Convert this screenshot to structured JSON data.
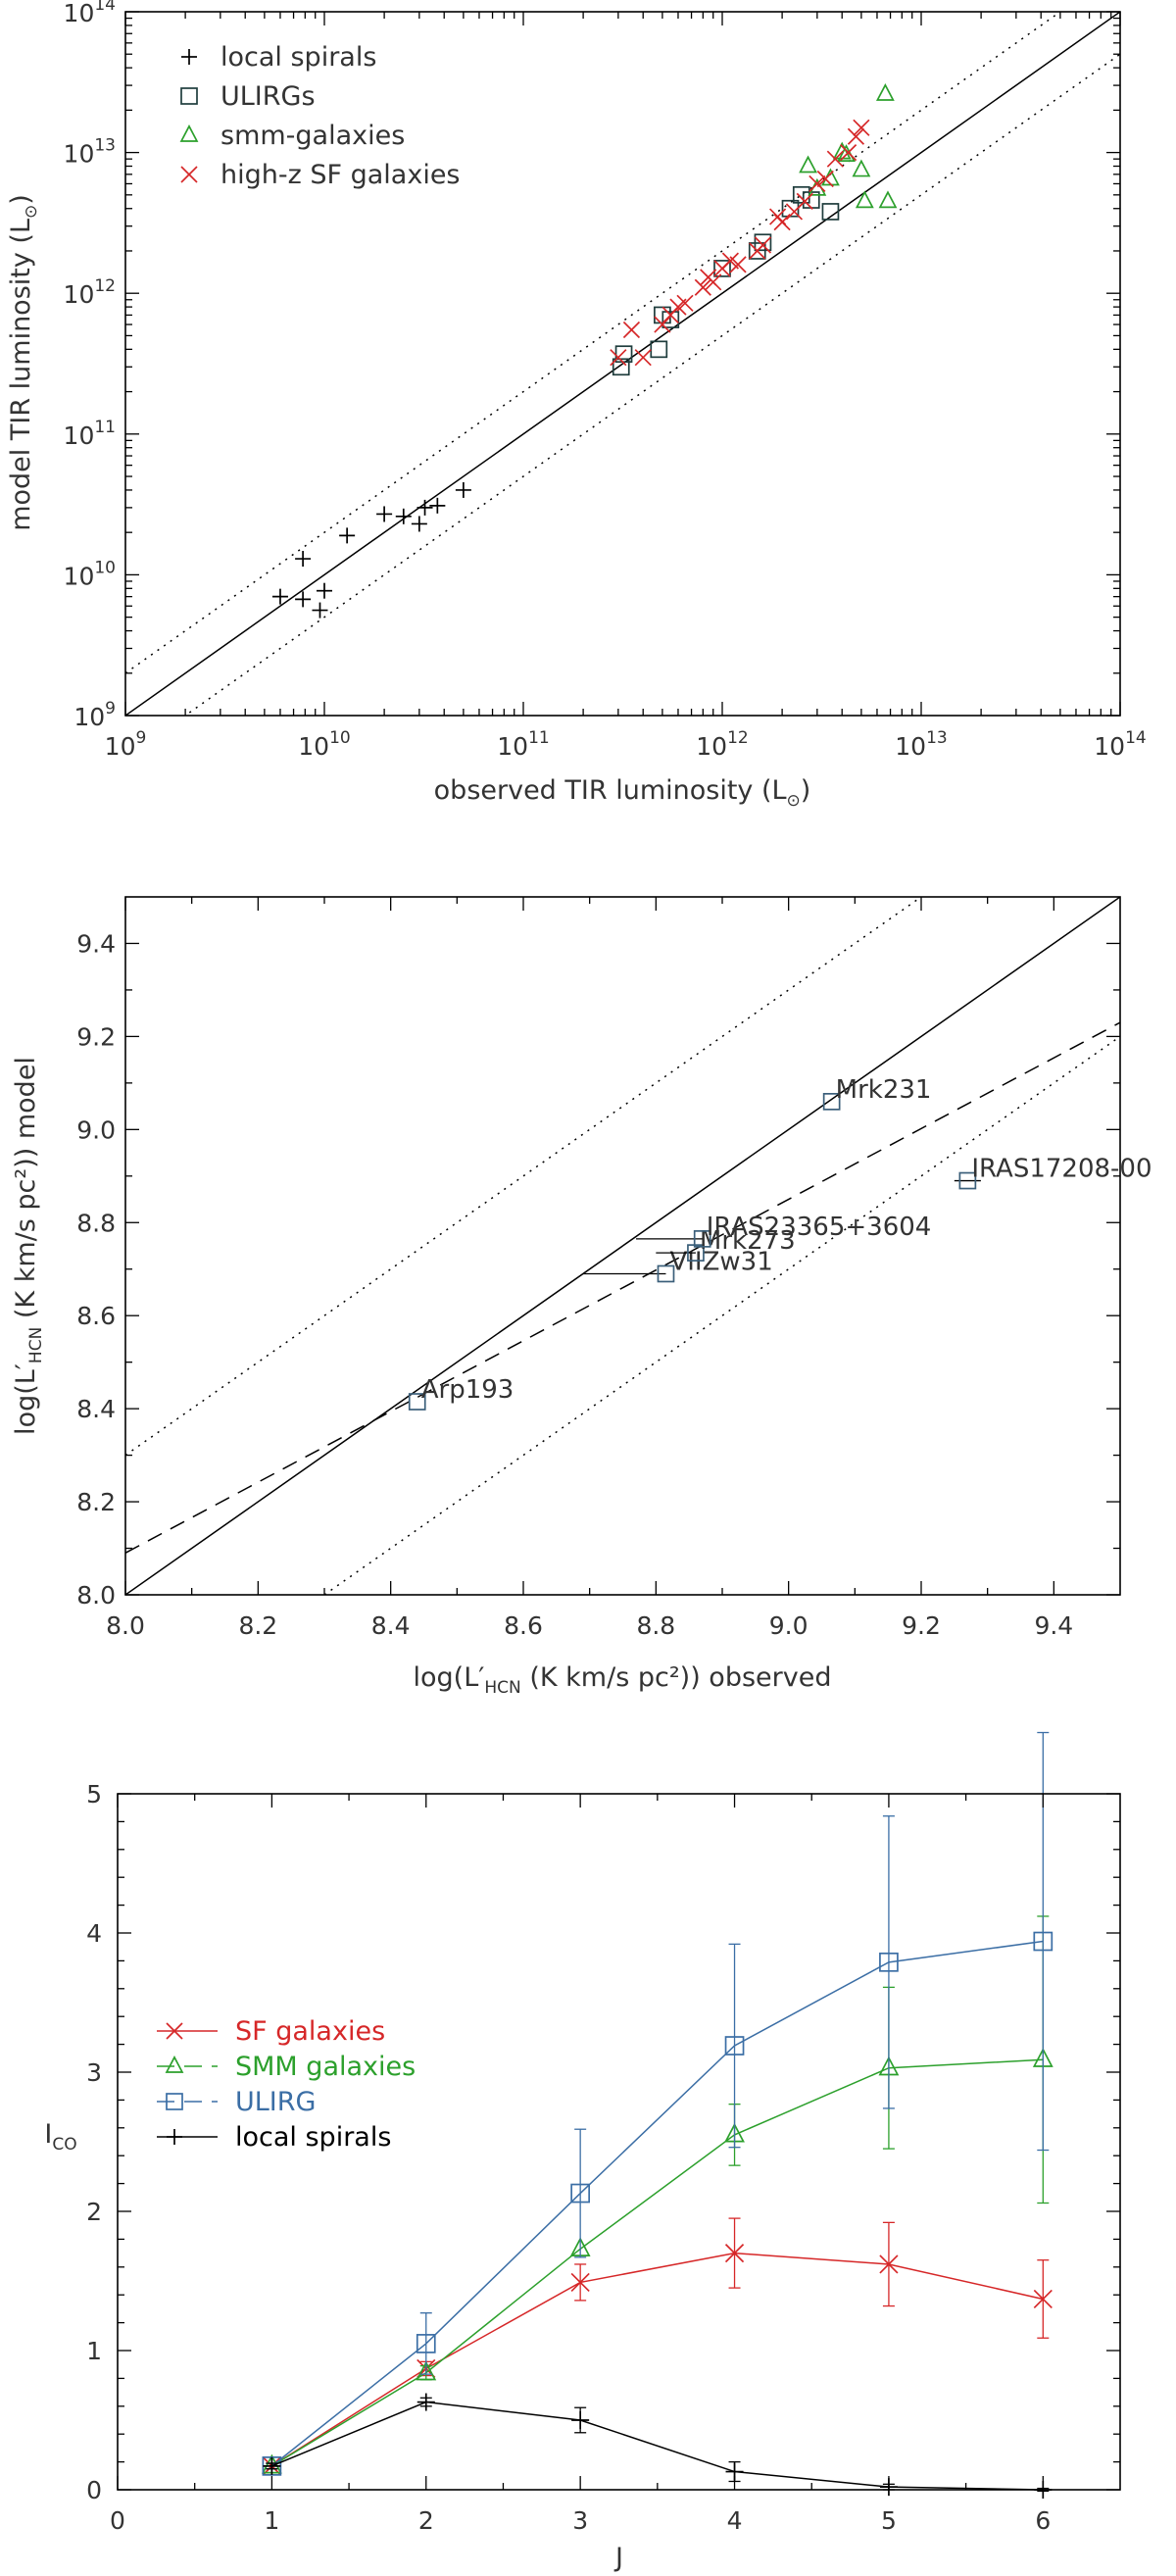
{
  "chart_data": [
    {
      "type": "scatter",
      "xlabel": "observed TIR luminosity (L⊙)",
      "ylabel": "model TIR luminosity (L⊙)",
      "xscale": "log",
      "yscale": "log",
      "xlim": [
        1000000000.0,
        100000000000000.0
      ],
      "ylim": [
        1000000000.0,
        100000000000000.0
      ],
      "xticks": [
        "10^9",
        "10^10",
        "10^11",
        "10^12",
        "10^13",
        "10^14"
      ],
      "yticks": [
        "10^9",
        "10^10",
        "10^11",
        "10^12",
        "10^13",
        "10^14"
      ],
      "legend": {
        "position": "top-left"
      },
      "lines": [
        {
          "style": "solid",
          "relation": "y = x"
        },
        {
          "style": "dotted",
          "relation": "y = 2x"
        },
        {
          "style": "dotted",
          "relation": "y = x/2"
        }
      ],
      "series": [
        {
          "name": "local spirals",
          "marker": "plus",
          "color": "#000000",
          "x": [
            6000000000.0,
            7800000000.0,
            7800000000.0,
            9500000000.0,
            10000000000.0,
            13000000000.0,
            20000000000.0,
            25000000000.0,
            30000000000.0,
            32000000000.0,
            37000000000.0,
            50000000000.0
          ],
          "y": [
            7000000000.0,
            6700000000.0,
            13000000000.0,
            5600000000.0,
            7700000000.0,
            19000000000.0,
            27000000000.0,
            26000000000.0,
            23000000000.0,
            30000000000.0,
            31000000000.0,
            40000000000.0
          ]
        },
        {
          "name": "ULIRGs",
          "marker": "square",
          "color": "#1f3d3d",
          "x": [
            310000000000.0,
            320000000000.0,
            480000000000.0,
            500000000000.0,
            550000000000.0,
            1000000000000.0,
            1500000000000.0,
            1600000000000.0,
            2200000000000.0,
            2500000000000.0,
            2800000000000.0,
            3500000000000.0
          ],
          "y": [
            300000000000.0,
            370000000000.0,
            400000000000.0,
            700000000000.0,
            650000000000.0,
            1500000000000.0,
            2000000000000.0,
            2300000000000.0,
            4000000000000.0,
            5000000000000.0,
            4600000000000.0,
            3800000000000.0
          ]
        },
        {
          "name": "smm-galaxies",
          "marker": "triangle",
          "color": "#2ca02c",
          "x": [
            2700000000000.0,
            3000000000000.0,
            3500000000000.0,
            4000000000000.0,
            4200000000000.0,
            5000000000000.0,
            5200000000000.0,
            6600000000000.0,
            6800000000000.0
          ],
          "y": [
            8000000000000.0,
            5500000000000.0,
            6500000000000.0,
            10000000000000.0,
            9600000000000.0,
            7500000000000.0,
            4500000000000.0,
            26000000000000.0,
            4500000000000.0
          ]
        },
        {
          "name": "high-z SF galaxies",
          "marker": "x",
          "color": "#d62728",
          "x": [
            300000000000.0,
            350000000000.0,
            400000000000.0,
            500000000000.0,
            550000000000.0,
            600000000000.0,
            650000000000.0,
            800000000000.0,
            850000000000.0,
            900000000000.0,
            1000000000000.0,
            1100000000000.0,
            1200000000000.0,
            1500000000000.0,
            1600000000000.0,
            1900000000000.0,
            2000000000000.0,
            2300000000000.0,
            2600000000000.0,
            3000000000000.0,
            3300000000000.0,
            3700000000000.0,
            4300000000000.0,
            4700000000000.0,
            5000000000000.0
          ],
          "y": [
            350000000000.0,
            550000000000.0,
            350000000000.0,
            600000000000.0,
            700000000000.0,
            800000000000.0,
            850000000000.0,
            1100000000000.0,
            1300000000000.0,
            1200000000000.0,
            1500000000000.0,
            1700000000000.0,
            1600000000000.0,
            2000000000000.0,
            2200000000000.0,
            3500000000000.0,
            3200000000000.0,
            3800000000000.0,
            4500000000000.0,
            6000000000000.0,
            6500000000000.0,
            9000000000000.0,
            10000000000000.0,
            13000000000000.0,
            15000000000000.0
          ]
        }
      ]
    },
    {
      "type": "scatter",
      "xlabel": "log(L′HCN  (K km/s pc²)) observed",
      "ylabel": "log(L′HCN  (K km/s pc²)) model",
      "xlim": [
        8.0,
        9.5
      ],
      "ylim": [
        8.0,
        9.5
      ],
      "xticks": [
        "8.0",
        "8.2",
        "8.4",
        "8.6",
        "8.8",
        "9.0",
        "9.2",
        "9.4"
      ],
      "yticks": [
        "8.0",
        "8.2",
        "8.4",
        "8.6",
        "8.8",
        "9.0",
        "9.2",
        "9.4"
      ],
      "lines": [
        {
          "style": "solid",
          "relation": "y = x"
        },
        {
          "style": "dotted",
          "relation": "y = x + 0.3"
        },
        {
          "style": "dotted",
          "relation": "y = x - 0.3"
        },
        {
          "style": "dashed",
          "points": [
            [
              8.0,
              8.09
            ],
            [
              9.5,
              9.23
            ]
          ]
        }
      ],
      "points": [
        {
          "label": "Arp193",
          "x": 8.44,
          "y": 8.415,
          "xerr": [
            8.44,
            8.44
          ]
        },
        {
          "label": "VIIZw31",
          "x": 8.815,
          "y": 8.69,
          "xerr": [
            8.69,
            8.815
          ]
        },
        {
          "label": "Mrk273",
          "x": 8.86,
          "y": 8.735,
          "xerr": [
            8.8,
            8.86
          ]
        },
        {
          "label": "IRAS23365+3604",
          "x": 8.87,
          "y": 8.765,
          "xerr": [
            8.77,
            8.87
          ]
        },
        {
          "label": "Mrk231",
          "x": 9.065,
          "y": 9.06,
          "xerr": [
            9.065,
            9.065
          ]
        },
        {
          "label": "IRAS17208-00",
          "x": 9.27,
          "y": 8.89,
          "xerr": [
            9.25,
            9.29
          ]
        }
      ]
    },
    {
      "type": "line",
      "xlabel": "J",
      "ylabel": "I_CO",
      "xlim": [
        0,
        6.5
      ],
      "ylim": [
        0,
        5
      ],
      "xticks": [
        "0",
        "1",
        "2",
        "3",
        "4",
        "5",
        "6"
      ],
      "yticks": [
        "0",
        "1",
        "2",
        "3",
        "4",
        "5"
      ],
      "legend": {
        "position": "middle-left"
      },
      "x": [
        1,
        2,
        3,
        4,
        5,
        6
      ],
      "series": [
        {
          "name": "SF galaxies",
          "marker": "x",
          "color": "#d62728",
          "values": [
            0.17,
            0.87,
            1.49,
            1.7,
            1.62,
            1.37
          ],
          "err": [
            0.02,
            0.05,
            0.13,
            0.25,
            0.3,
            0.28
          ]
        },
        {
          "name": "SMM galaxies",
          "marker": "triangle",
          "color": "#2ca02c",
          "values": [
            0.17,
            0.84,
            1.73,
            2.55,
            3.03,
            3.09
          ],
          "err": [
            0.02,
            0.05,
            0.0,
            0.22,
            0.58,
            1.03
          ]
        },
        {
          "name": "ULIRG",
          "marker": "square",
          "color": "#3b6ea5",
          "values": [
            0.17,
            1.05,
            2.13,
            3.19,
            3.79,
            3.94
          ],
          "err": [
            0.02,
            0.22,
            0.46,
            0.73,
            1.05,
            1.5
          ]
        },
        {
          "name": "local spirals",
          "marker": "plus",
          "color": "#000000",
          "values": [
            0.17,
            0.63,
            0.5,
            0.13,
            0.02,
            0.0
          ],
          "err": [
            0.02,
            0.03,
            0.09,
            0.07,
            0.02,
            0.01
          ]
        }
      ]
    }
  ]
}
